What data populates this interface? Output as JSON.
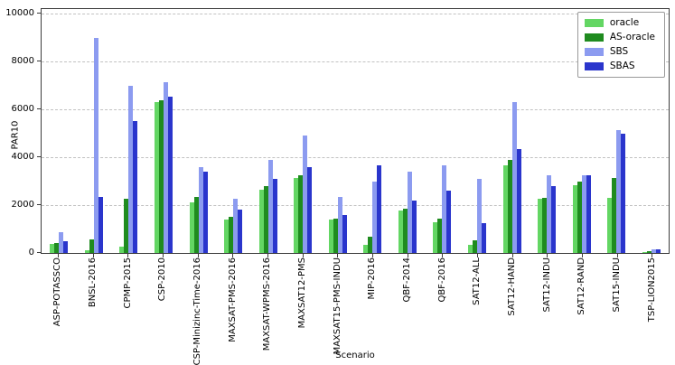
{
  "chart_data": {
    "type": "bar",
    "title": "",
    "xlabel": "Scenario",
    "ylabel": "PAR10",
    "ylim": [
      0,
      10200
    ],
    "yticks": [
      0,
      2000,
      4000,
      6000,
      8000,
      10000
    ],
    "grid": "horizontal-dashed",
    "legend_position": "upper right",
    "categories": [
      "ASP-POTASSCO",
      "BNSL-2016",
      "CPMP-2015",
      "CSP-2010",
      "CSP-Minizinc-Time-2016",
      "MAXSAT-PMS-2016",
      "MAXSAT-WPMS-2016",
      "MAXSAT12-PMS",
      "MAXSAT15-PMS-INDU",
      "MIP-2016",
      "QBF-2014",
      "QBF-2016",
      "SAT12-ALL",
      "SAT12-HAND",
      "SAT12-INDU",
      "SAT12-RAND",
      "SAT15-INDU",
      "TSP-LION2015"
    ],
    "series": [
      {
        "name": "oracle",
        "color": "#63d663",
        "values": [
          380,
          120,
          250,
          6300,
          2100,
          1400,
          2650,
          3150,
          1400,
          340,
          1780,
          1300,
          330,
          3660,
          2250,
          2850,
          2290,
          30
        ]
      },
      {
        "name": "AS-oracle",
        "color": "#1f8b1f",
        "values": [
          420,
          550,
          2250,
          6400,
          2330,
          1500,
          2800,
          3250,
          1450,
          690,
          1860,
          1450,
          540,
          3880,
          2300,
          3000,
          3150,
          60
        ]
      },
      {
        "name": "SBS",
        "color": "#8c9bf0",
        "values": [
          880,
          9000,
          7000,
          7150,
          3600,
          2250,
          3900,
          4900,
          2350,
          3000,
          3400,
          3650,
          3100,
          6300,
          3250,
          3250,
          5150,
          150
        ]
      },
      {
        "name": "SBAS",
        "color": "#2a35cc",
        "values": [
          480,
          2350,
          5500,
          6550,
          3400,
          1800,
          3100,
          3600,
          1600,
          3650,
          2200,
          2600,
          1250,
          4350,
          2800,
          3250,
          5000,
          150
        ]
      }
    ]
  }
}
